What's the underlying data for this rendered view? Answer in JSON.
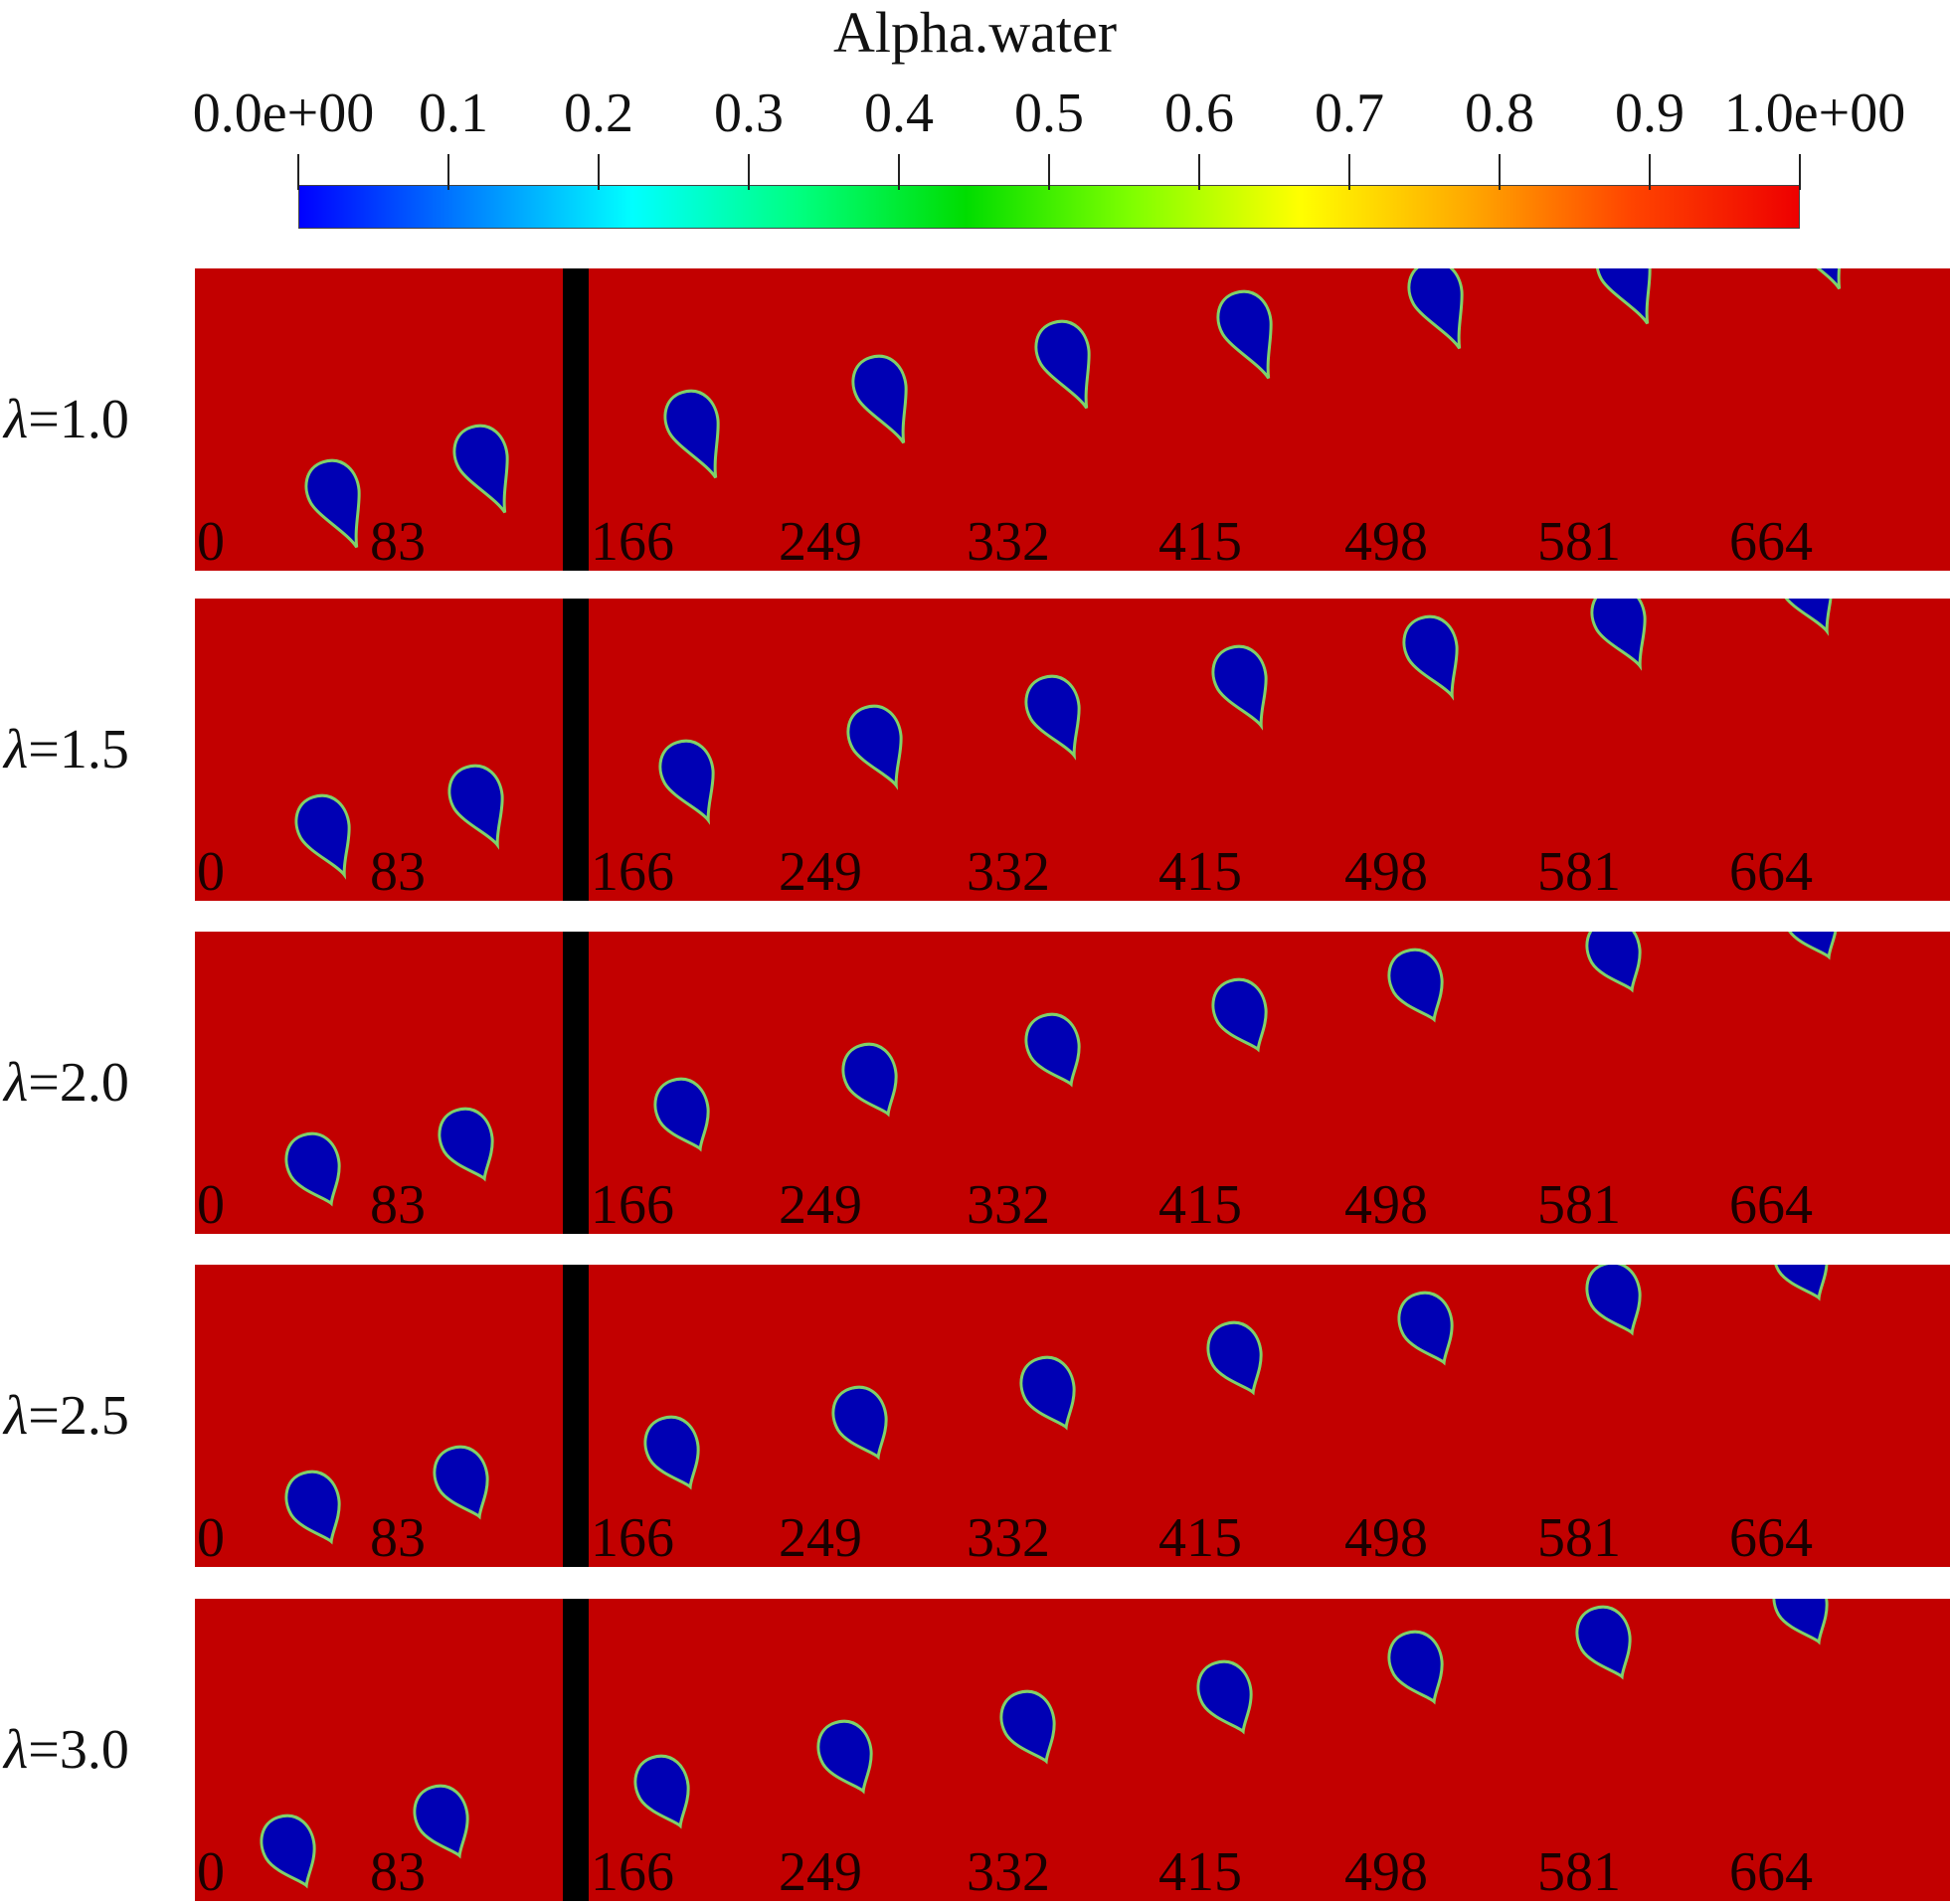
{
  "colorbar": {
    "title": "Alpha.water",
    "tick_labels": [
      "0.0e+00",
      "0.1",
      "0.2",
      "0.3",
      "0.4",
      "0.5",
      "0.6",
      "0.7",
      "0.8",
      "0.9",
      "1.0e+00"
    ],
    "stops": [
      "#0000ff",
      "#0080ff",
      "#00ffff",
      "#00ff80",
      "#00dd00",
      "#80ff00",
      "#ffff00",
      "#ffaa00",
      "#ff4400",
      "#ee0000"
    ]
  },
  "colors": {
    "background_fluid": "#c20000",
    "droplet": "#0000b4",
    "interface": "#7fd16a",
    "separator": "#000000"
  },
  "frame_labels": [
    "0",
    "83",
    "166",
    "249",
    "332",
    "415",
    "498",
    "581",
    "664"
  ],
  "rows": [
    {
      "symbol": "λ",
      "label": "=1.0"
    },
    {
      "symbol": "λ",
      "label": "=1.5"
    },
    {
      "symbol": "λ",
      "label": "=2.0"
    },
    {
      "symbol": "λ",
      "label": "=2.5"
    },
    {
      "symbol": "λ",
      "label": "=3.0"
    }
  ]
}
